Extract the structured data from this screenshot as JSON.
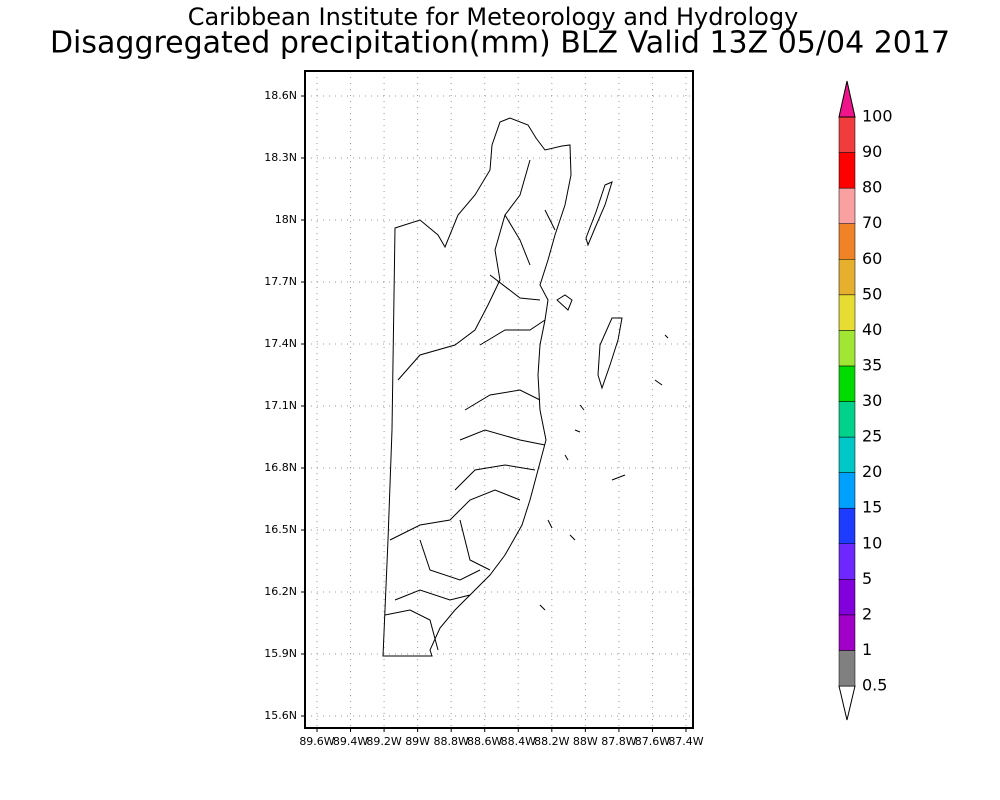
{
  "header": {
    "title": "Caribbean Institute for Meteorology and Hydrology",
    "subtitle": "Disaggregated precipitation(mm) BLZ Valid 13Z 05/04 2017"
  },
  "map": {
    "lat_ticks": [
      "18.6N",
      "18.3N",
      "18N",
      "17.7N",
      "17.4N",
      "17.1N",
      "16.8N",
      "16.5N",
      "16.2N",
      "15.9N",
      "15.6N"
    ],
    "lon_ticks": [
      "89.6W",
      "89.4W",
      "89.2W",
      "89W",
      "88.8W",
      "88.6W",
      "88.4W",
      "88.2W",
      "88W",
      "87.8W",
      "87.6W",
      "87.4W"
    ],
    "grid": true
  },
  "colorbar": {
    "levels": [
      "0.5",
      "1",
      "2",
      "5",
      "10",
      "15",
      "20",
      "25",
      "30",
      "35",
      "40",
      "50",
      "60",
      "70",
      "80",
      "90",
      "100"
    ],
    "colors": [
      "#ffffff",
      "#808080",
      "#a000c8",
      "#8200dc",
      "#6e28ff",
      "#1e3cff",
      "#00a0ff",
      "#00c8c8",
      "#00d28c",
      "#00dc00",
      "#a0e632",
      "#e6dc32",
      "#e6af2d",
      "#f08228",
      "#faa0a0",
      "#ff0000",
      "#f03c3c",
      "#f0148c"
    ]
  }
}
